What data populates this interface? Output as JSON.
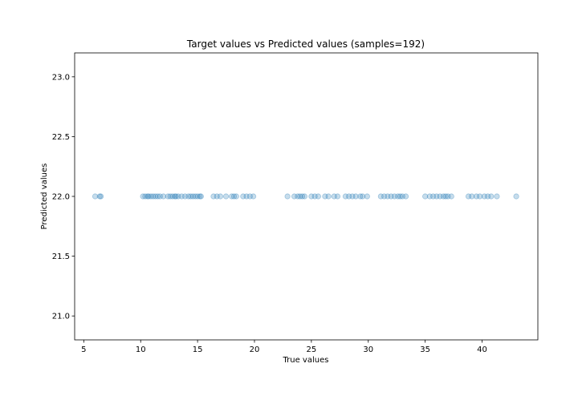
{
  "chart_data": {
    "type": "scatter",
    "title": "Target values vs Predicted values (samples=192)",
    "xlabel": "True values",
    "ylabel": "Predicted values",
    "xlim": [
      4.2,
      44.9
    ],
    "ylim": [
      20.8,
      23.2
    ],
    "xticks": [
      5,
      10,
      15,
      20,
      25,
      30,
      35,
      40
    ],
    "xtick_labels": [
      "5",
      "10",
      "15",
      "20",
      "25",
      "30",
      "35",
      "40"
    ],
    "yticks": [
      21.0,
      21.5,
      22.0,
      22.5,
      23.0
    ],
    "ytick_labels": [
      "21.0",
      "21.5",
      "22.0",
      "22.5",
      "23.0"
    ],
    "grid": false,
    "marker_color": "#1f77b4",
    "marker_alpha": 0.25,
    "series": [
      {
        "x": [
          6.0,
          6.4,
          6.5,
          10.2,
          10.4,
          10.6,
          10.7,
          10.9,
          11.1,
          11.3,
          11.5,
          11.7,
          12.0,
          12.4,
          12.6,
          12.8,
          13.0,
          13.1,
          13.3,
          13.6,
          13.9,
          14.2,
          14.4,
          14.6,
          14.8,
          15.0,
          15.2,
          15.3,
          16.4,
          16.7,
          17.0,
          17.5,
          18.0,
          18.2,
          18.4,
          19.0,
          19.3,
          19.6,
          19.9,
          22.9,
          23.5,
          23.8,
          24.0,
          24.2,
          24.4,
          25.0,
          25.3,
          25.6,
          26.2,
          26.5,
          27.0,
          27.3,
          28.0,
          28.3,
          28.6,
          28.9,
          29.3,
          29.5,
          29.9,
          31.1,
          31.4,
          31.7,
          32.0,
          32.3,
          32.6,
          32.8,
          33.0,
          33.3,
          35.0,
          35.4,
          35.7,
          36.0,
          36.3,
          36.6,
          36.8,
          37.0,
          37.3,
          38.8,
          39.1,
          39.5,
          39.8,
          40.2,
          40.5,
          40.8,
          41.3,
          43.0
        ],
        "y": [
          22.0,
          22.0,
          22.0,
          22.0,
          22.0,
          22.0,
          22.0,
          22.0,
          22.0,
          22.0,
          22.0,
          22.0,
          22.0,
          22.0,
          22.0,
          22.0,
          22.0,
          22.0,
          22.0,
          22.0,
          22.0,
          22.0,
          22.0,
          22.0,
          22.0,
          22.0,
          22.0,
          22.0,
          22.0,
          22.0,
          22.0,
          22.0,
          22.0,
          22.0,
          22.0,
          22.0,
          22.0,
          22.0,
          22.0,
          22.0,
          22.0,
          22.0,
          22.0,
          22.0,
          22.0,
          22.0,
          22.0,
          22.0,
          22.0,
          22.0,
          22.0,
          22.0,
          22.0,
          22.0,
          22.0,
          22.0,
          22.0,
          22.0,
          22.0,
          22.0,
          22.0,
          22.0,
          22.0,
          22.0,
          22.0,
          22.0,
          22.0,
          22.0,
          22.0,
          22.0,
          22.0,
          22.0,
          22.0,
          22.0,
          22.0,
          22.0,
          22.0,
          22.0,
          22.0,
          22.0,
          22.0,
          22.0,
          22.0,
          22.0,
          22.0,
          22.0
        ]
      }
    ]
  }
}
